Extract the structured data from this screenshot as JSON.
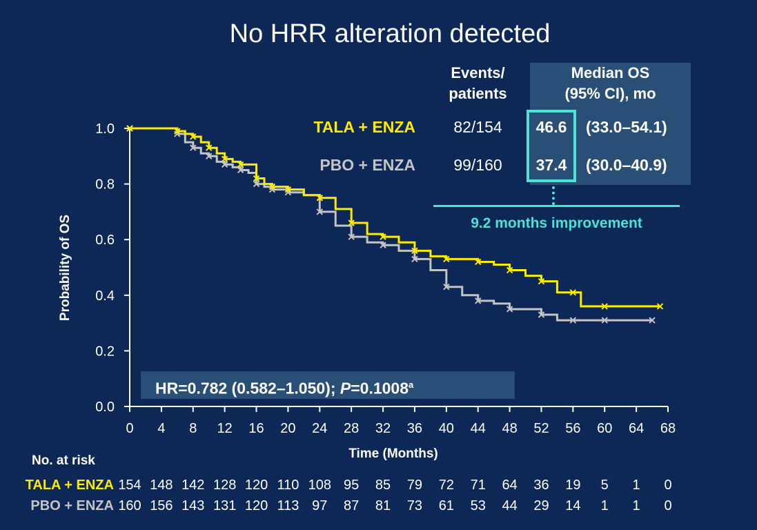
{
  "title": "No HRR alteration detected",
  "table": {
    "col_events": [
      "Events/",
      "patients"
    ],
    "col_median": [
      "Median OS",
      "(95% CI), mo"
    ],
    "rows": [
      {
        "label": "TALA + ENZA",
        "events": "82/154",
        "median": "46.6",
        "ci": "(33.0–54.1)",
        "color": "#ffeb00"
      },
      {
        "label": "PBO + ENZA",
        "events": "99/160",
        "median": "37.4",
        "ci": "(30.0–40.9)",
        "color": "#c4c4c4"
      }
    ],
    "improvement": "9.2 months improvement"
  },
  "hr": {
    "prefix": "HR=0.782 (0.582–1.050); ",
    "p_italic": "P",
    "p_value": "=0.1008",
    "superscript": "a"
  },
  "risk": {
    "title": "No. at risk",
    "rows": [
      {
        "label": "TALA + ENZA",
        "color": "#ffeb00",
        "values": [
          "154",
          "148",
          "142",
          "128",
          "120",
          "110",
          "108",
          "95",
          "85",
          "79",
          "72",
          "71",
          "64",
          "36",
          "19",
          "5",
          "1",
          "0"
        ]
      },
      {
        "label": "PBO + ENZA",
        "color": "#c4c4c4",
        "values": [
          "160",
          "156",
          "143",
          "131",
          "120",
          "113",
          "97",
          "87",
          "81",
          "73",
          "61",
          "53",
          "44",
          "29",
          "14",
          "1",
          "1",
          "0"
        ]
      }
    ]
  },
  "chart_data": {
    "type": "line",
    "title": "No HRR alteration detected",
    "xlabel": "Time (Months)",
    "ylabel": "Probability of OS",
    "xlim": [
      0,
      68
    ],
    "ylim": [
      0,
      1.0
    ],
    "xticks": [
      0,
      4,
      8,
      12,
      16,
      20,
      24,
      28,
      32,
      36,
      40,
      44,
      48,
      52,
      56,
      60,
      64,
      68
    ],
    "yticks": [
      "0.0",
      "0.2",
      "0.4",
      "0.6",
      "0.8",
      "1.0"
    ],
    "series": [
      {
        "name": "TALA + ENZA",
        "color": "#ffeb00",
        "x": [
          0,
          5,
          6,
          7,
          8,
          9,
          10,
          11,
          12,
          13,
          14,
          15,
          16,
          17,
          18,
          19,
          20,
          22,
          24,
          26,
          28,
          30,
          32,
          34,
          36,
          38,
          40,
          42,
          44,
          46,
          48,
          50,
          52,
          54,
          56,
          57,
          60,
          64,
          67
        ],
        "y": [
          1.0,
          1.0,
          0.99,
          0.98,
          0.97,
          0.95,
          0.93,
          0.91,
          0.89,
          0.88,
          0.87,
          0.87,
          0.82,
          0.8,
          0.79,
          0.79,
          0.78,
          0.76,
          0.75,
          0.71,
          0.66,
          0.62,
          0.61,
          0.59,
          0.56,
          0.54,
          0.53,
          0.53,
          0.52,
          0.51,
          0.49,
          0.47,
          0.45,
          0.41,
          0.41,
          0.36,
          0.36,
          0.36,
          0.36
        ]
      },
      {
        "name": "PBO + ENZA",
        "color": "#c4c4c4",
        "x": [
          0,
          5,
          6,
          7,
          8,
          9,
          10,
          11,
          12,
          13,
          14,
          15,
          16,
          17,
          18,
          19,
          20,
          22,
          24,
          26,
          28,
          30,
          32,
          34,
          36,
          38,
          40,
          42,
          44,
          46,
          48,
          50,
          52,
          54,
          56,
          57,
          60,
          64,
          66
        ],
        "y": [
          1.0,
          1.0,
          0.98,
          0.95,
          0.93,
          0.91,
          0.9,
          0.88,
          0.87,
          0.86,
          0.85,
          0.84,
          0.8,
          0.79,
          0.78,
          0.78,
          0.77,
          0.76,
          0.7,
          0.65,
          0.61,
          0.59,
          0.58,
          0.56,
          0.53,
          0.49,
          0.43,
          0.4,
          0.38,
          0.37,
          0.35,
          0.35,
          0.33,
          0.31,
          0.31,
          0.31,
          0.31,
          0.31,
          0.31
        ]
      }
    ],
    "grid": false,
    "legend": "table top-right"
  }
}
